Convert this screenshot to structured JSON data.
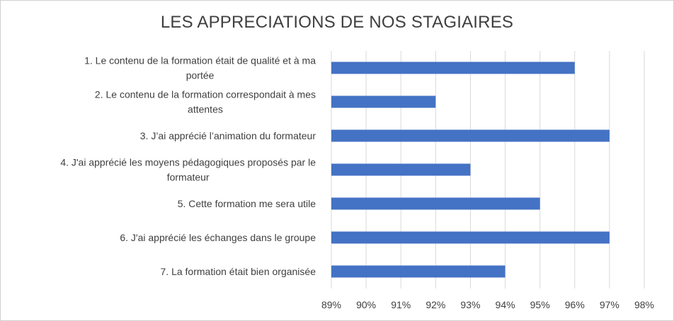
{
  "chart_data": {
    "type": "bar",
    "orientation": "horizontal",
    "title": "LES APPRECIATIONS DE NOS STAGIAIRES",
    "categories": [
      [
        "1. Le contenu de la formation était de qualité et à ma",
        "portée"
      ],
      [
        "2. Le contenu de la formation correspondait à mes",
        "attentes"
      ],
      [
        "3. J’ai apprécié l’animation du formateur"
      ],
      [
        "4. J'ai apprécié les moyens pédagogiques proposés par le",
        "formateur"
      ],
      [
        "5. Cette formation me sera utile"
      ],
      [
        "6. J'ai apprécié les échanges dans le groupe"
      ],
      [
        "7. La formation était bien organisée"
      ]
    ],
    "values": [
      96,
      92,
      97,
      93,
      95,
      97,
      94
    ],
    "xlim": [
      89,
      98
    ],
    "ticks": [
      "89%",
      "90%",
      "91%",
      "92%",
      "93%",
      "94%",
      "95%",
      "96%",
      "97%",
      "98%"
    ],
    "bar_color": "#4472c4",
    "grid_color": "#d9d9d9",
    "grid": true,
    "legend": "none"
  }
}
